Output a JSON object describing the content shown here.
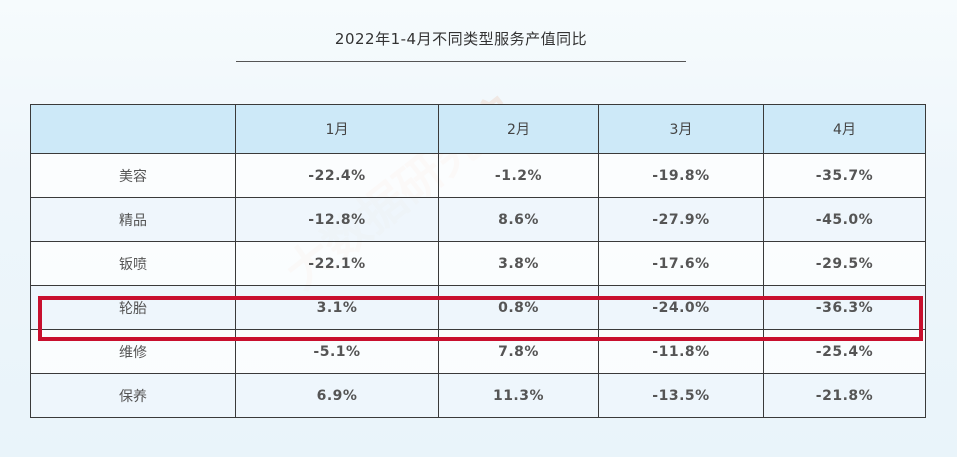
{
  "chart_data": {
    "type": "table",
    "title": "2022年1-4月不同类型服务产值同比",
    "columns": [
      "",
      "1月",
      "2月",
      "3月",
      "4月"
    ],
    "rows": [
      {
        "category": "美容",
        "values": [
          "-22.4%",
          "-1.2%",
          "-19.8%",
          "-35.7%"
        ],
        "signs": [
          "neg",
          "neg",
          "neg",
          "neg"
        ]
      },
      {
        "category": "精品",
        "values": [
          "-12.8%",
          "8.6%",
          "-27.9%",
          "-45.0%"
        ],
        "signs": [
          "neg",
          "pos",
          "neg",
          "neg"
        ]
      },
      {
        "category": "钣喷",
        "values": [
          "-22.1%",
          "3.8%",
          "-17.6%",
          "-29.5%"
        ],
        "signs": [
          "neg",
          "pos",
          "neg",
          "neg"
        ]
      },
      {
        "category": "轮胎",
        "values": [
          "3.1%",
          "0.8%",
          "-24.0%",
          "-36.3%"
        ],
        "signs": [
          "pos",
          "pos",
          "neg",
          "neg"
        ]
      },
      {
        "category": "维修",
        "values": [
          "-5.1%",
          "7.8%",
          "-11.8%",
          "-25.4%"
        ],
        "signs": [
          "neg",
          "pos",
          "neg",
          "neg"
        ]
      },
      {
        "category": "保养",
        "values": [
          "6.9%",
          "11.3%",
          "-13.5%",
          "-21.8%"
        ],
        "signs": [
          "pos",
          "pos",
          "neg",
          "neg"
        ]
      }
    ],
    "highlighted_row": "轮胎"
  },
  "colors": {
    "negative": "#7aa23a",
    "positive": "#c8202e",
    "header_bg": "#cde9f8",
    "highlight_border": "#c8102e"
  },
  "watermark": "大数据研究院"
}
